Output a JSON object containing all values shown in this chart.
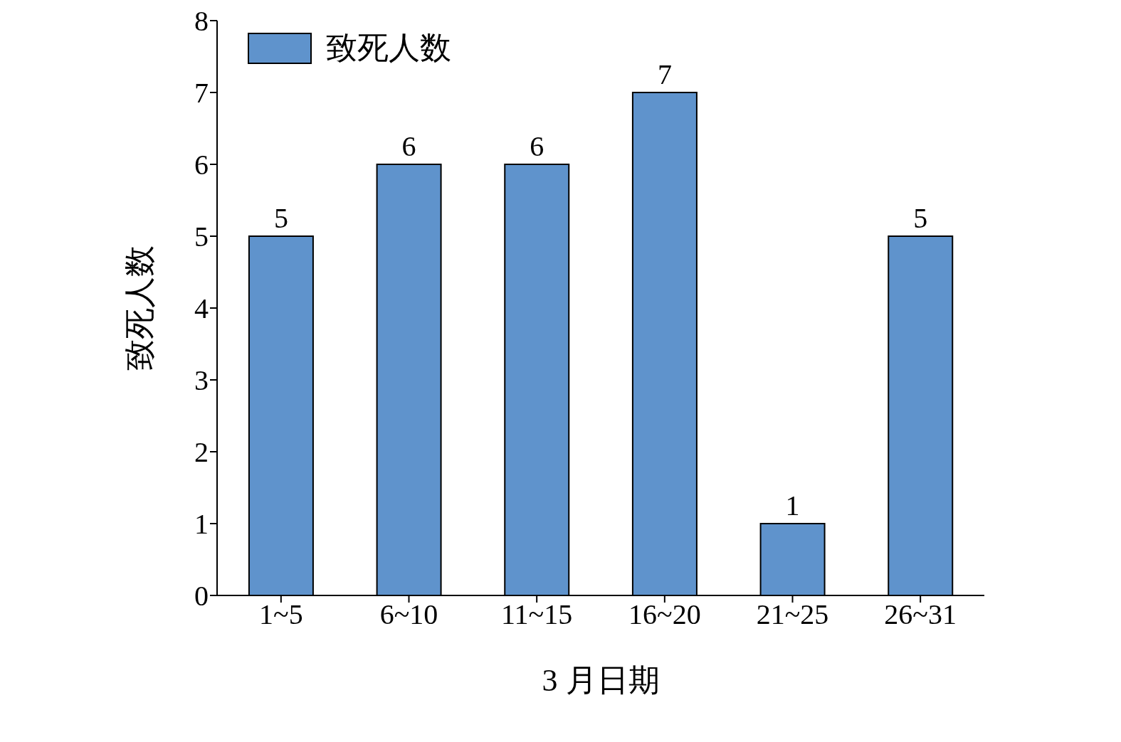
{
  "chart_data": {
    "type": "bar",
    "xlabel": "3 月日期",
    "ylabel": "致死人数",
    "categories": [
      "1~5",
      "6~10",
      "11~15",
      "16~20",
      "21~25",
      "26~31"
    ],
    "series": [
      {
        "name": "致死人数",
        "color": "#5f93cc",
        "values": [
          5,
          6,
          6,
          7,
          1,
          5
        ]
      }
    ],
    "ylim": [
      0,
      8
    ],
    "yticks": [
      0,
      1,
      2,
      3,
      4,
      5,
      6,
      7,
      8
    ],
    "data_labels": true,
    "legend": "top left",
    "grid": false
  }
}
